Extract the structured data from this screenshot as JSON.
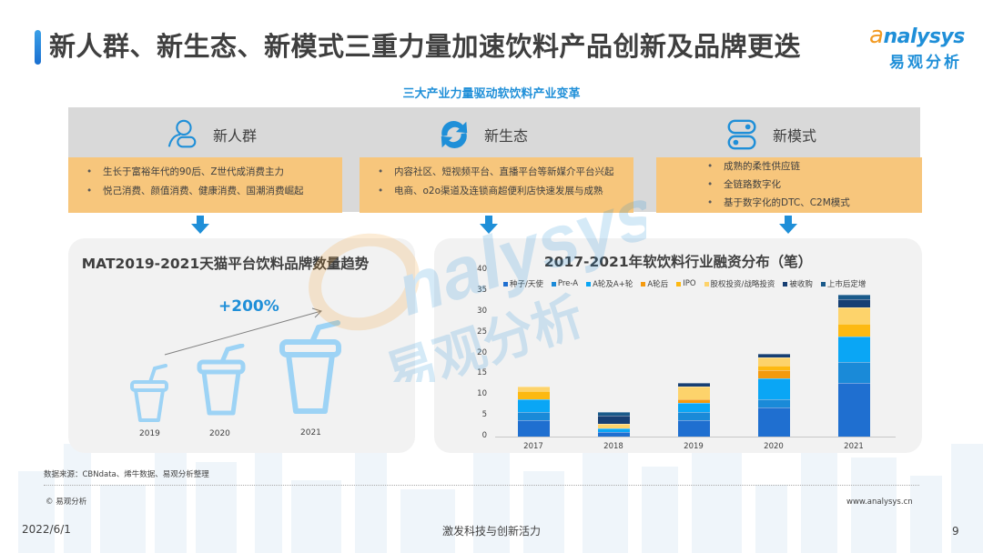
{
  "header": {
    "title": "新人群、新生态、新模式三重力量加速饮料产品创新及品牌更迭",
    "subtitle": "三大产业力量驱动软饮料产业变革",
    "logo_en_a": "a",
    "logo_en_rest": "nalysys",
    "logo_cn": "易观分析"
  },
  "pillars": [
    {
      "label": "新人群",
      "icon": "person-icon",
      "bullets": [
        "生长于富裕年代的90后、Z世代成消费主力",
        "悦己消费、颜值消费、健康消费、国潮消费崛起"
      ]
    },
    {
      "label": "新生态",
      "icon": "cycle-arrows-icon",
      "bullets": [
        "内容社区、短视频平台、直播平台等新媒介平台兴起",
        "电商、o2o渠道及连锁商超便利店快速发展与成熟"
      ]
    },
    {
      "label": "新模式",
      "icon": "toggle-switches-icon",
      "bullets": [
        "成熟的柔性供应链",
        "全链路数字化",
        "基于数字化的DTC、C2M模式"
      ]
    }
  ],
  "left_panel": {
    "title": "MAT2019-2021天猫平台饮料品牌数量趋势",
    "growth_label": "+200%",
    "years": [
      "2019",
      "2020",
      "2021"
    ]
  },
  "right_panel": {
    "title": "2017-2021年软饮料行业融资分布（笔）"
  },
  "colors": {
    "accent_blue": "#1f8fd8",
    "orange_box": "#f7c67c",
    "gray_band": "#d9d9d9",
    "panel_bg": "#f2f2f2",
    "cup_blue": "#9dd3f5"
  },
  "chart_data": [
    {
      "type": "bar",
      "title": "MAT2019-2021天猫平台饮料品牌数量趋势",
      "categories": [
        "2019",
        "2020",
        "2021"
      ],
      "annotation": "+200%",
      "note": "Pictogram (cup icons of increasing size); no numeric axis shown"
    },
    {
      "type": "bar",
      "stacked": true,
      "title": "2017-2021年软饮料行业融资分布（笔）",
      "xlabel": "",
      "ylabel": "",
      "categories": [
        "2017",
        "2018",
        "2019",
        "2020",
        "2021"
      ],
      "ylim": [
        0,
        40
      ],
      "yticks": [
        0,
        5,
        10,
        15,
        20,
        25,
        30,
        35,
        40
      ],
      "grid": false,
      "legend_position": "top",
      "series": [
        {
          "name": "种子/天使",
          "color": "#1f6fd0",
          "values": [
            4,
            1,
            4,
            7,
            13
          ]
        },
        {
          "name": "Pre-A",
          "color": "#1a8ad8",
          "values": [
            2,
            0,
            2,
            2,
            5
          ]
        },
        {
          "name": "A轮及A+轮",
          "color": "#0aa6f5",
          "values": [
            3,
            1,
            2,
            5,
            6
          ]
        },
        {
          "name": "A轮后",
          "color": "#f59a0e",
          "values": [
            0,
            0,
            1,
            2,
            0
          ]
        },
        {
          "name": "IPO",
          "color": "#fdb912",
          "values": [
            2,
            0,
            0,
            1,
            3
          ]
        },
        {
          "name": "股权投资/战略投资",
          "color": "#fdd36b",
          "values": [
            1,
            1,
            3,
            2,
            4
          ]
        },
        {
          "name": "被收购",
          "color": "#173f73",
          "values": [
            0,
            2,
            1,
            1,
            2
          ]
        },
        {
          "name": "上市后定增",
          "color": "#1a5a8a",
          "values": [
            0,
            1,
            0,
            0,
            1
          ]
        }
      ],
      "totals": [
        12,
        6,
        13,
        20,
        34
      ]
    }
  ],
  "footer": {
    "source": "数据来源：CBNdata、烯牛数据、易观分析整理",
    "copyright": "© 易观分析",
    "website": "www.analysys.cn",
    "date": "2022/6/1",
    "slogan": "激发科技与创新活力",
    "page_number": "9"
  }
}
